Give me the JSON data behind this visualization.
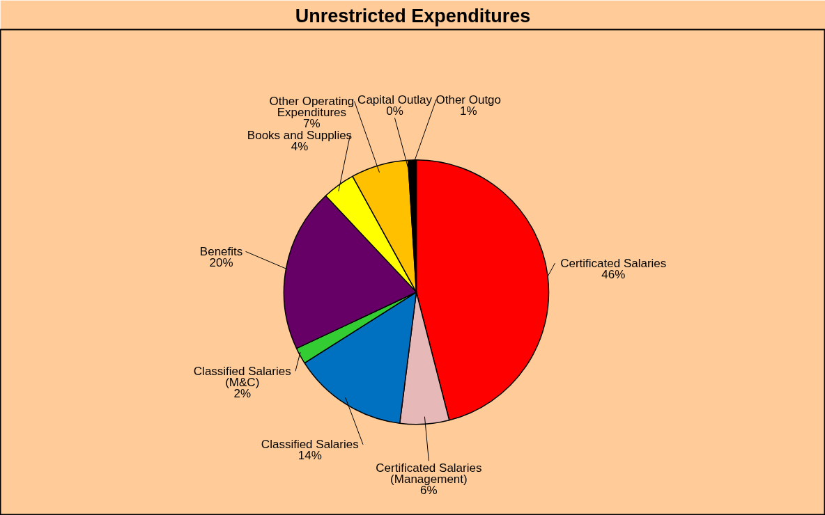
{
  "chart_data": {
    "type": "pie",
    "title": "Unrestricted Expenditures",
    "categories": [
      "Certificated Salaries",
      "Certificated Salaries (Management)",
      "Classified Salaries",
      "Classified Salaries (M&C)",
      "Benefits",
      "Books and Supplies",
      "Other Operating Expenditures",
      "Capital Outlay",
      "Other Outgo"
    ],
    "values": [
      46,
      6,
      14,
      2,
      20,
      4,
      7,
      0,
      1
    ],
    "value_labels": [
      "46%",
      "6%",
      "14%",
      "2%",
      "20%",
      "4%",
      "7%",
      "0%",
      "1%"
    ],
    "colors": [
      "#ff0000",
      "#e6b9b8",
      "#0070c0",
      "#33cc33",
      "#660066",
      "#ffff00",
      "#ffc000",
      "#000000",
      "#000000"
    ],
    "legend": false
  }
}
